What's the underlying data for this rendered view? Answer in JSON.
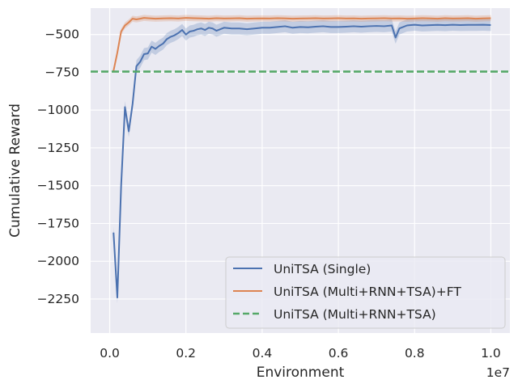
{
  "chart_data": {
    "type": "line",
    "title": "",
    "xlabel": "Environment",
    "ylabel": "Cumulative Reward",
    "x_offset_label": "1e7",
    "xlim": [
      -0.05,
      1.05
    ],
    "ylim": [
      -2475,
      -325
    ],
    "xticks": [
      0.0,
      0.2,
      0.4,
      0.6,
      0.8,
      1.0
    ],
    "xtick_labels": [
      "0.0",
      "0.2",
      "0.4",
      "0.6",
      "0.8",
      "1.0"
    ],
    "yticks": [
      -500,
      -750,
      -1000,
      -1250,
      -1500,
      -1750,
      -2000,
      -2250
    ],
    "ytick_labels": [
      "−500",
      "−750",
      "−1000",
      "−1250",
      "−1500",
      "−1750",
      "−2000",
      "−2250"
    ],
    "grid": true,
    "legend_position": "lower-right",
    "series": [
      {
        "name": "UniTSA (Single)",
        "color": "#4c72b0",
        "style": "solid",
        "x": [
          0.01,
          0.02,
          0.03,
          0.04,
          0.05,
          0.06,
          0.07,
          0.08,
          0.09,
          0.1,
          0.11,
          0.12,
          0.13,
          0.14,
          0.15,
          0.16,
          0.17,
          0.18,
          0.19,
          0.2,
          0.21,
          0.22,
          0.23,
          0.24,
          0.25,
          0.26,
          0.27,
          0.28,
          0.29,
          0.3,
          0.32,
          0.34,
          0.36,
          0.38,
          0.4,
          0.42,
          0.44,
          0.46,
          0.48,
          0.5,
          0.52,
          0.54,
          0.56,
          0.58,
          0.6,
          0.62,
          0.64,
          0.66,
          0.68,
          0.7,
          0.72,
          0.74,
          0.75,
          0.76,
          0.78,
          0.8,
          0.82,
          0.84,
          0.86,
          0.88,
          0.9,
          0.92,
          0.94,
          0.96,
          0.98,
          1.0
        ],
        "y": [
          -1810,
          -2240,
          -1500,
          -980,
          -1140,
          -960,
          -710,
          -680,
          -630,
          -625,
          -580,
          -595,
          -575,
          -560,
          -530,
          -515,
          -505,
          -490,
          -470,
          -500,
          -480,
          -475,
          -465,
          -460,
          -470,
          -455,
          -460,
          -475,
          -465,
          -455,
          -460,
          -460,
          -465,
          -460,
          -455,
          -455,
          -450,
          -445,
          -455,
          -450,
          -452,
          -448,
          -445,
          -450,
          -450,
          -448,
          -445,
          -448,
          -445,
          -443,
          -445,
          -440,
          -520,
          -460,
          -440,
          -435,
          -440,
          -438,
          -436,
          -438,
          -435,
          -437,
          -436,
          -436,
          -435,
          -437
        ],
        "band": 40
      },
      {
        "name": "UniTSA (Multi+RNN+TSA)+FT",
        "color": "#dd8452",
        "style": "solid",
        "x": [
          0.01,
          0.02,
          0.03,
          0.04,
          0.05,
          0.06,
          0.07,
          0.08,
          0.09,
          0.1,
          0.12,
          0.14,
          0.16,
          0.18,
          0.2,
          0.22,
          0.24,
          0.26,
          0.28,
          0.3,
          0.32,
          0.34,
          0.36,
          0.38,
          0.4,
          0.42,
          0.44,
          0.46,
          0.48,
          0.5,
          0.52,
          0.54,
          0.56,
          0.58,
          0.6,
          0.62,
          0.64,
          0.66,
          0.68,
          0.7,
          0.72,
          0.74,
          0.76,
          0.78,
          0.8,
          0.82,
          0.84,
          0.86,
          0.88,
          0.9,
          0.92,
          0.94,
          0.96,
          0.98,
          1.0
        ],
        "y": [
          -740,
          -620,
          -480,
          -440,
          -420,
          -395,
          -400,
          -395,
          -390,
          -392,
          -395,
          -393,
          -392,
          -394,
          -390,
          -392,
          -393,
          -395,
          -392,
          -394,
          -393,
          -392,
          -395,
          -394,
          -393,
          -394,
          -392,
          -393,
          -395,
          -394,
          -393,
          -392,
          -394,
          -393,
          -392,
          -394,
          -393,
          -395,
          -394,
          -393,
          -392,
          -394,
          -393,
          -395,
          -394,
          -392,
          -393,
          -395,
          -392,
          -394,
          -393,
          -392,
          -395,
          -393,
          -392
        ],
        "band": 20
      },
      {
        "name": "UniTSA (Multi+RNN+TSA)",
        "color": "#55a868",
        "style": "dashed",
        "y_constant": -745
      }
    ]
  }
}
